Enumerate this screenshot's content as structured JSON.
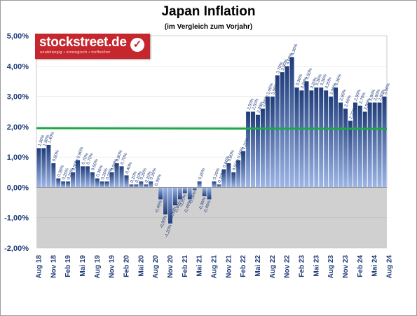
{
  "chart_data": {
    "type": "bar",
    "title": "Japan Inflation",
    "subtitle": "(im Vergleich zum Vorjahr)",
    "ylim": [
      -2,
      5
    ],
    "yticks": [
      "-2,00%",
      "-1,00%",
      "0,00%",
      "1,00%",
      "2,00%",
      "3,00%",
      "4,00%",
      "5,00%"
    ],
    "xticks": [
      "Aug 18",
      "Nov 18",
      "Feb 19",
      "Mai 19",
      "Aug 19",
      "Nov 19",
      "Feb 20",
      "Mai 20",
      "Aug 20",
      "Nov 20",
      "Feb 21",
      "Mai 21",
      "Aug 21",
      "Nov 21",
      "Feb 22",
      "Mai 22",
      "Aug 22",
      "Nov 22",
      "Feb 23",
      "Mai 23",
      "Aug 23",
      "Nov 23",
      "Feb 24",
      "Mai 24",
      "Aug 24"
    ],
    "target_line": 2.0,
    "series": [
      {
        "values": [
          1.3,
          1.3,
          1.4,
          0.8,
          0.3,
          0.2,
          0.2,
          0.5,
          0.9,
          0.7,
          0.7,
          0.5,
          0.3,
          0.2,
          0.2,
          0.5,
          0.8,
          0.7,
          0.4,
          0.1,
          0.1,
          0.2,
          0.1,
          0.2,
          0.0,
          -0.4,
          -0.9,
          -1.2,
          -0.6,
          -0.4,
          -0.2,
          -0.4,
          -0.1,
          0.2,
          -0.3,
          -0.4,
          0.2,
          0.1,
          0.6,
          0.8,
          0.5,
          0.9,
          1.2,
          2.5,
          2.5,
          2.4,
          2.6,
          3.0,
          3.0,
          3.7,
          3.8,
          4.0,
          4.3,
          3.3,
          3.2,
          3.5,
          3.2,
          3.3,
          3.3,
          3.2,
          3.0,
          3.3,
          2.8,
          2.6,
          2.2,
          2.8,
          2.7,
          2.5,
          2.8,
          2.8,
          2.8,
          3.0
        ],
        "labels": [
          "1,30%",
          "1,30%",
          "1,40%",
          "0,80%",
          "0,30%",
          "0,20%",
          "0,20%",
          "0,50%",
          "0,90%",
          "0,70%",
          "0,70%",
          "0,50%",
          "0,30%",
          "0,20%",
          "0,20%",
          "0,50%",
          "0,80%",
          "0,70%",
          "0,40%",
          "0,10%",
          "0,10%",
          "0,20%",
          "0,10%",
          "0,20%",
          "0,00%",
          "-0,40%",
          "-0,90%",
          "-1,20%",
          "-0,60%",
          "-0,40%",
          "-0,20%",
          "-0,40%",
          "-0,10%",
          "0,20%",
          "-0,30%",
          "-0,40%",
          "0,20%",
          "0,10%",
          "0,60%",
          "0,80%",
          "0,50%",
          "0,90%",
          "1,20%",
          "2,50%",
          "2,50%",
          "2,40%",
          "2,60%",
          "3,00%",
          "3,00%",
          "3,70%",
          "3,80%",
          "4,00%",
          "4,30%",
          "3,30%",
          "3,20%",
          "3,50%",
          "3,20%",
          "3,30%",
          "3,30%",
          "3,20%",
          "3,00%",
          "3,30%",
          "2,80%",
          "2,60%",
          "2,20%",
          "2,80%",
          "2,70%",
          "2,50%",
          "2,80%",
          "2,80%",
          "2,80%",
          "3,00%"
        ]
      }
    ],
    "colors": {
      "bar_top": "#1f3c7a",
      "bar_bottom": "#9db6e6",
      "plot_positive": "#ffffff",
      "plot_negative": "#d0d0d0",
      "target": "#1fa84a",
      "axis_text": "#1f3a78"
    }
  },
  "logo": {
    "name": "stockstreet.de",
    "tagline": "unabhängig • strategisch • treffsicher",
    "check": "✓"
  }
}
